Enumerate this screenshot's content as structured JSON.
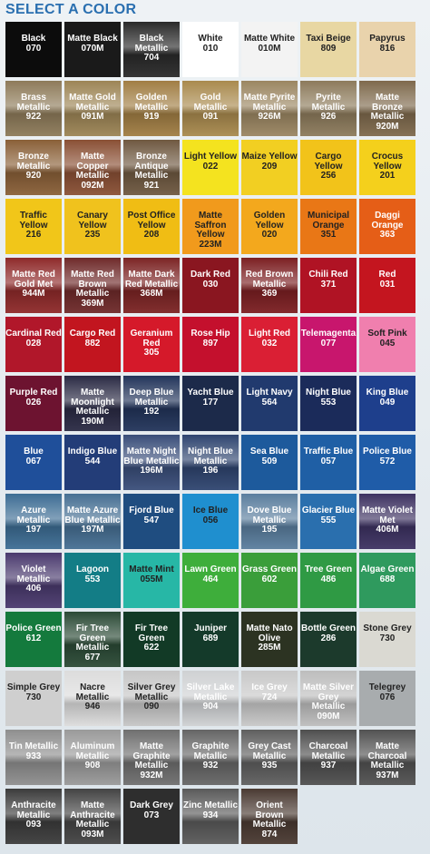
{
  "header": {
    "title": "SELECT A COLOR"
  },
  "colors": [
    {
      "name": "Black",
      "code": "070",
      "bg": "#0c0c0c",
      "fg": "#ffffff",
      "metal": false
    },
    {
      "name": "Matte Black",
      "code": "070M",
      "bg": "#1a1a1a",
      "fg": "#ffffff",
      "metal": false
    },
    {
      "name": "Black\nMetallic",
      "code": "704",
      "bg": "#2a2a2a",
      "fg": "#ffffff",
      "metal": true
    },
    {
      "name": "White",
      "code": "010",
      "bg": "#ffffff",
      "fg": "#222222",
      "metal": false
    },
    {
      "name": "Matte White",
      "code": "010M",
      "bg": "#f3f3f3",
      "fg": "#222222",
      "metal": false
    },
    {
      "name": "Taxi Beige",
      "code": "809",
      "bg": "#e8d7a3",
      "fg": "#222222",
      "metal": false
    },
    {
      "name": "Papyrus",
      "code": "816",
      "bg": "#e9d3ac",
      "fg": "#222222",
      "metal": false
    },
    {
      "name": "Brass\nMetallic",
      "code": "922",
      "bg": "#8e7b5a",
      "fg": "#ffffff",
      "metal": true
    },
    {
      "name": "Matte Gold\nMetallic",
      "code": "091M",
      "bg": "#9d8556",
      "fg": "#ffffff",
      "metal": true
    },
    {
      "name": "Golden\nMetallic",
      "code": "919",
      "bg": "#a17e44",
      "fg": "#ffffff",
      "metal": true
    },
    {
      "name": "Gold Metallic",
      "code": "091",
      "bg": "#a98a4e",
      "fg": "#ffffff",
      "metal": true
    },
    {
      "name": "Matte Pyrite\nMetallic",
      "code": "926M",
      "bg": "#9b8662",
      "fg": "#ffffff",
      "metal": true
    },
    {
      "name": "Pyrite\nMetallic",
      "code": "926",
      "bg": "#8d7b5c",
      "fg": "#ffffff",
      "metal": true
    },
    {
      "name": "Matte Bronze\nMetallic",
      "code": "920M",
      "bg": "#7f6a4d",
      "fg": "#ffffff",
      "metal": true
    },
    {
      "name": "Bronze\nMetallic",
      "code": "920",
      "bg": "#8a6038",
      "fg": "#ffffff",
      "metal": true
    },
    {
      "name": "Matte\nCopper\nMetallic",
      "code": "092M",
      "bg": "#8a5035",
      "fg": "#ffffff",
      "metal": true
    },
    {
      "name": "Bronze\nAntique\nMetallic",
      "code": "921",
      "bg": "#6f5941",
      "fg": "#ffffff",
      "metal": true
    },
    {
      "name": "Light Yellow",
      "code": "022",
      "bg": "#f4e31f",
      "fg": "#222222",
      "metal": false
    },
    {
      "name": "Maize Yellow",
      "code": "209",
      "bg": "#f2cf22",
      "fg": "#222222",
      "metal": false
    },
    {
      "name": "Cargo Yellow",
      "code": "256",
      "bg": "#f2c31a",
      "fg": "#222222",
      "metal": false
    },
    {
      "name": "Crocus\nYellow",
      "code": "201",
      "bg": "#f4d01c",
      "fg": "#222222",
      "metal": false
    },
    {
      "name": "Traffic\nYellow",
      "code": "216",
      "bg": "#f1c619",
      "fg": "#222222",
      "metal": false
    },
    {
      "name": "Canary\nYellow",
      "code": "235",
      "bg": "#f0c21d",
      "fg": "#222222",
      "metal": false
    },
    {
      "name": "Post Office\nYellow",
      "code": "208",
      "bg": "#f0bd14",
      "fg": "#222222",
      "metal": false
    },
    {
      "name": "Matte\nSaffron\nYellow",
      "code": "223M",
      "bg": "#f19a1c",
      "fg": "#222222",
      "metal": false
    },
    {
      "name": "Golden\nYellow",
      "code": "020",
      "bg": "#f3a81d",
      "fg": "#222222",
      "metal": false
    },
    {
      "name": "Municipal\nOrange",
      "code": "351",
      "bg": "#e97716",
      "fg": "#222222",
      "metal": false
    },
    {
      "name": "Daggi Orange",
      "code": "363",
      "bg": "#e55e17",
      "fg": "#ffffff",
      "metal": false
    },
    {
      "name": "Matte Red\nGold Met",
      "code": "944M",
      "bg": "#8f2a2a",
      "fg": "#ffffff",
      "metal": true
    },
    {
      "name": "Matte Red\nBrown\nMetallic",
      "code": "369M",
      "bg": "#6f2a2a",
      "fg": "#ffffff",
      "metal": true
    },
    {
      "name": "Matte Dark\nRed Metallic",
      "code": "368M",
      "bg": "#7c2424",
      "fg": "#ffffff",
      "metal": true
    },
    {
      "name": "Dark Red",
      "code": "030",
      "bg": "#8a1620",
      "fg": "#ffffff",
      "metal": false
    },
    {
      "name": "Red Brown\nMetallic",
      "code": "369",
      "bg": "#7c1f22",
      "fg": "#ffffff",
      "metal": true
    },
    {
      "name": "Chili Red",
      "code": "371",
      "bg": "#b01324",
      "fg": "#ffffff",
      "metal": false
    },
    {
      "name": "Red",
      "code": "031",
      "bg": "#c4151f",
      "fg": "#ffffff",
      "metal": false
    },
    {
      "name": "Cardinal Red",
      "code": "028",
      "bg": "#b1172a",
      "fg": "#ffffff",
      "metal": false
    },
    {
      "name": "Cargo Red",
      "code": "882",
      "bg": "#c2151f",
      "fg": "#ffffff",
      "metal": false
    },
    {
      "name": "Geranium\nRed",
      "code": "305",
      "bg": "#d5192a",
      "fg": "#ffffff",
      "metal": false
    },
    {
      "name": "Rose Hip",
      "code": "897",
      "bg": "#c4102d",
      "fg": "#ffffff",
      "metal": false
    },
    {
      "name": "Light Red",
      "code": "032",
      "bg": "#da1f34",
      "fg": "#ffffff",
      "metal": false
    },
    {
      "name": "Telemagenta",
      "code": "077",
      "bg": "#c8166d",
      "fg": "#ffffff",
      "metal": false
    },
    {
      "name": "Soft Pink",
      "code": "045",
      "bg": "#f07fae",
      "fg": "#222222",
      "metal": false
    },
    {
      "name": "Purple Red",
      "code": "026",
      "bg": "#6d1330",
      "fg": "#ffffff",
      "metal": false
    },
    {
      "name": "Matte\nMoonlight\nMetallic",
      "code": "190M",
      "bg": "#2a2a44",
      "fg": "#ffffff",
      "metal": true
    },
    {
      "name": "Deep Blue\nMetallic",
      "code": "192",
      "bg": "#22345a",
      "fg": "#ffffff",
      "metal": true
    },
    {
      "name": "Yacht Blue",
      "code": "177",
      "bg": "#1c2a4a",
      "fg": "#ffffff",
      "metal": false
    },
    {
      "name": "Light Navy",
      "code": "564",
      "bg": "#213a6e",
      "fg": "#ffffff",
      "metal": false
    },
    {
      "name": "Night Blue",
      "code": "553",
      "bg": "#1b2b5a",
      "fg": "#ffffff",
      "metal": false
    },
    {
      "name": "King Blue",
      "code": "049",
      "bg": "#1e3f8c",
      "fg": "#ffffff",
      "metal": false
    },
    {
      "name": "Blue",
      "code": "067",
      "bg": "#1f4f9a",
      "fg": "#ffffff",
      "metal": false
    },
    {
      "name": "Indigo Blue",
      "code": "544",
      "bg": "#233d78",
      "fg": "#ffffff",
      "metal": false
    },
    {
      "name": "Matte Night\nBlue Metallic",
      "code": "196M",
      "bg": "#3a4e7a",
      "fg": "#ffffff",
      "metal": true
    },
    {
      "name": "Night Blue\nMetallic",
      "code": "196",
      "bg": "#2f4570",
      "fg": "#ffffff",
      "metal": true
    },
    {
      "name": "Sea Blue",
      "code": "509",
      "bg": "#1d5a9c",
      "fg": "#ffffff",
      "metal": false
    },
    {
      "name": "Traffic Blue",
      "code": "057",
      "bg": "#1f5fa5",
      "fg": "#ffffff",
      "metal": false
    },
    {
      "name": "Police Blue",
      "code": "572",
      "bg": "#1f5ca8",
      "fg": "#ffffff",
      "metal": false
    },
    {
      "name": "Azure\nMetallic",
      "code": "197",
      "bg": "#3d6d94",
      "fg": "#ffffff",
      "metal": true
    },
    {
      "name": "Matte Azure\nBlue Metallic",
      "code": "197M",
      "bg": "#466f93",
      "fg": "#ffffff",
      "metal": true
    },
    {
      "name": "Fjord Blue",
      "code": "547",
      "bg": "#1f4d80",
      "fg": "#ffffff",
      "metal": false
    },
    {
      "name": "Ice Blue",
      "code": "056",
      "bg": "#1f8fcf",
      "fg": "#222222",
      "metal": false
    },
    {
      "name": "Dove Blue\nMetallic",
      "code": "195",
      "bg": "#5a7e9e",
      "fg": "#ffffff",
      "metal": true
    },
    {
      "name": "Glacier Blue",
      "code": "555",
      "bg": "#2a6fae",
      "fg": "#ffffff",
      "metal": false
    },
    {
      "name": "Matte Violet\nMet",
      "code": "406M",
      "bg": "#3d3262",
      "fg": "#ffffff",
      "metal": true
    },
    {
      "name": "Violet\nMetallic",
      "code": "406",
      "bg": "#4a3a6e",
      "fg": "#ffffff",
      "metal": true
    },
    {
      "name": "Lagoon",
      "code": "553",
      "bg": "#137d86",
      "fg": "#ffffff",
      "metal": false
    },
    {
      "name": "Matte Mint",
      "code": "055M",
      "bg": "#27b7a6",
      "fg": "#222222",
      "metal": false
    },
    {
      "name": "Lawn Green",
      "code": "464",
      "bg": "#3eae3b",
      "fg": "#ffffff",
      "metal": false
    },
    {
      "name": "Grass Green",
      "code": "602",
      "bg": "#3a9e3a",
      "fg": "#ffffff",
      "metal": false
    },
    {
      "name": "Tree Green",
      "code": "486",
      "bg": "#2f9a44",
      "fg": "#ffffff",
      "metal": false
    },
    {
      "name": "Algae Green",
      "code": "688",
      "bg": "#2f9a5e",
      "fg": "#ffffff",
      "metal": false
    },
    {
      "name": "Police Green",
      "code": "612",
      "bg": "#147a3d",
      "fg": "#ffffff",
      "metal": false
    },
    {
      "name": "Fir Tree\nGreen\nMetallic",
      "code": "677",
      "bg": "#2b4a36",
      "fg": "#ffffff",
      "metal": true
    },
    {
      "name": "Fir Tree\nGreen",
      "code": "622",
      "bg": "#123a26",
      "fg": "#ffffff",
      "metal": false
    },
    {
      "name": "Juniper",
      "code": "689",
      "bg": "#143a2a",
      "fg": "#ffffff",
      "metal": false
    },
    {
      "name": "Matte Nato\nOlive",
      "code": "285M",
      "bg": "#2c3322",
      "fg": "#ffffff",
      "metal": false
    },
    {
      "name": "Bottle Green",
      "code": "286",
      "bg": "#1c3a2c",
      "fg": "#ffffff",
      "metal": false
    },
    {
      "name": "Stone Grey",
      "code": "730",
      "bg": "#dad9d2",
      "fg": "#222222",
      "metal": false
    },
    {
      "name": "Simple Grey",
      "code": "730",
      "bg": "#cfcfcf",
      "fg": "#222222",
      "metal": false
    },
    {
      "name": "Nacre\nMetallic",
      "code": "946",
      "bg": "#dcdcdc",
      "fg": "#222222",
      "metal": true
    },
    {
      "name": "Silver Grey\nMetallic",
      "code": "090",
      "bg": "#c6c6c6",
      "fg": "#222222",
      "metal": true
    },
    {
      "name": "Silver Lake\nMetallic",
      "code": "904",
      "bg": "#cfd1d3",
      "fg": "#ffffff",
      "metal": true
    },
    {
      "name": "Ice Grey",
      "code": "724",
      "bg": "#c8c8c8",
      "fg": "#ffffff",
      "metal": true
    },
    {
      "name": "Matte Silver\nGrey Metallic",
      "code": "090M",
      "bg": "#bdbdbd",
      "fg": "#ffffff",
      "metal": true
    },
    {
      "name": "Telegrey",
      "code": "076",
      "bg": "#a8acae",
      "fg": "#222222",
      "metal": false
    },
    {
      "name": "Tin Metallic",
      "code": "933",
      "bg": "#8f8f8f",
      "fg": "#ffffff",
      "metal": true
    },
    {
      "name": "Aluminum\nMetallic",
      "code": "908",
      "bg": "#9a9a9a",
      "fg": "#ffffff",
      "metal": true
    },
    {
      "name": "Matte\nGraphite\nMetallic",
      "code": "932M",
      "bg": "#6f6f6f",
      "fg": "#ffffff",
      "metal": true
    },
    {
      "name": "Graphite\nMetallic",
      "code": "932",
      "bg": "#666666",
      "fg": "#ffffff",
      "metal": true
    },
    {
      "name": "Grey Cast\nMetallic",
      "code": "935",
      "bg": "#5f5f5f",
      "fg": "#ffffff",
      "metal": true
    },
    {
      "name": "Charcoal\nMetallic",
      "code": "937",
      "bg": "#4f4f4f",
      "fg": "#ffffff",
      "metal": true
    },
    {
      "name": "Matte\nCharcoal\nMetallic",
      "code": "937M",
      "bg": "#525252",
      "fg": "#ffffff",
      "metal": true
    },
    {
      "name": "Anthracite\nMetallic",
      "code": "093",
      "bg": "#3c3c3c",
      "fg": "#ffffff",
      "metal": true
    },
    {
      "name": "Matte\nAnthracite\nMetallic",
      "code": "093M",
      "bg": "#444444",
      "fg": "#ffffff",
      "metal": true
    },
    {
      "name": "Dark Grey",
      "code": "073",
      "bg": "#2e2e2e",
      "fg": "#ffffff",
      "metal": false
    },
    {
      "name": "Zinc Metallic",
      "code": "934",
      "bg": "#5a5a5a",
      "fg": "#ffffff",
      "metal": true
    },
    {
      "name": "Orient Brown\nMetallic",
      "code": "874",
      "bg": "#4a3a32",
      "fg": "#ffffff",
      "metal": true
    }
  ]
}
